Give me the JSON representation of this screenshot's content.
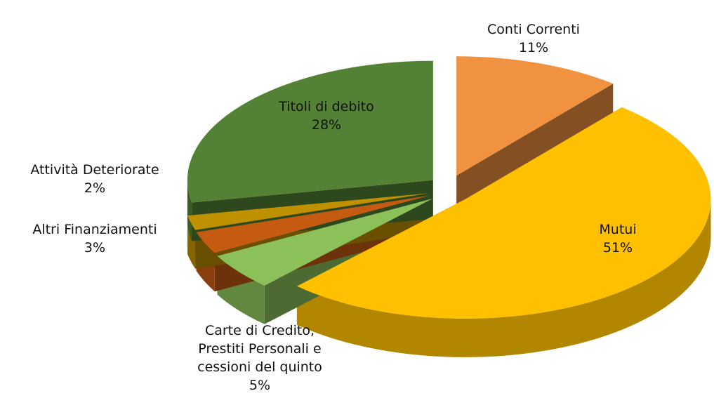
{
  "chart_data": {
    "type": "pie",
    "categories": [
      "Conti Correnti",
      "Mutui",
      "Carte di Credito,\nPrestiti Personali e\ncessioni del quinto",
      "Altri Finanziamenti",
      "Attività Deteriorate",
      "Titoli di debito"
    ],
    "values": [
      11,
      51,
      5,
      3,
      2,
      28
    ],
    "value_labels": [
      "11%",
      "51%",
      "5%",
      "3%",
      "2%",
      "28%"
    ],
    "colors": [
      "#f0923f",
      "#ffc000",
      "#8cc15a",
      "#c55a11",
      "#bf9000",
      "#548235"
    ]
  }
}
